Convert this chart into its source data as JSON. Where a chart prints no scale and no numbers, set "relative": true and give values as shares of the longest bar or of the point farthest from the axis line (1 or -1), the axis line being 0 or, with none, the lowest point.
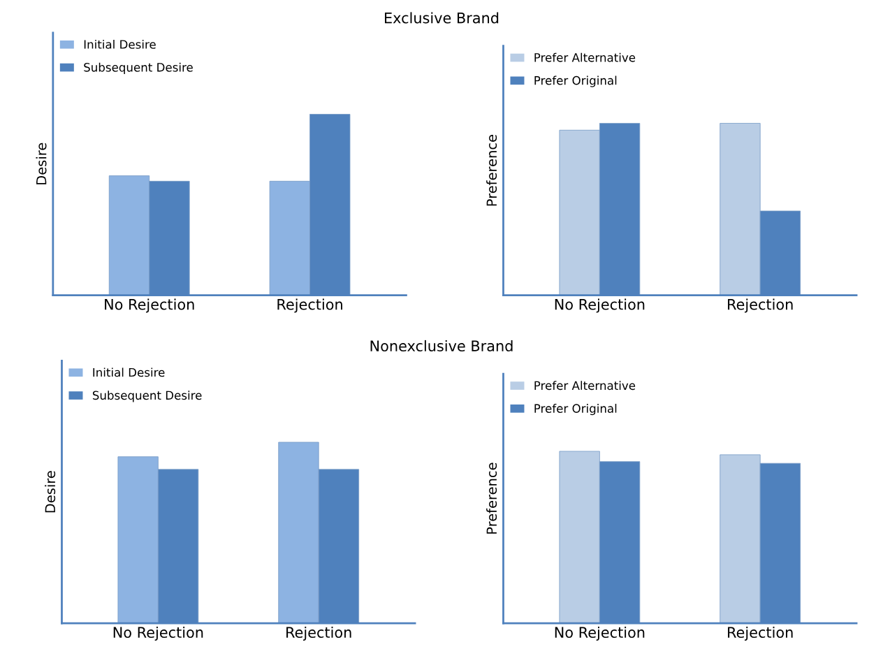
{
  "chart_data": [
    {
      "type": "bar",
      "title": "Exclusive Brand",
      "ylabel": "Desire",
      "relative": true,
      "legend": "top left",
      "grid": false,
      "categories": [
        "No Rejection",
        "Rejection"
      ],
      "series": [
        {
          "name": "Initial Desire",
          "color": "#8db3e2",
          "values": [
            0.66,
            0.63
          ]
        },
        {
          "name": "Subsequent Desire",
          "color": "#4f81bd",
          "values": [
            0.63,
            1
          ]
        }
      ]
    },
    {
      "type": "bar",
      "ylabel": "Preference",
      "relative": true,
      "legend": "top left",
      "grid": false,
      "categories": [
        "No Rejection",
        "Rejection"
      ],
      "series": [
        {
          "name": "Prefer Alternative",
          "color": "#b9cde5",
          "values": [
            0.96,
            1
          ]
        },
        {
          "name": "Prefer Original",
          "color": "#4f81bd",
          "values": [
            1,
            0.49
          ]
        }
      ]
    },
    {
      "type": "bar",
      "title": "Nonexclusive Brand",
      "ylabel": "Desire",
      "relative": true,
      "legend": "top left",
      "grid": false,
      "categories": [
        "No Rejection",
        "Rejection"
      ],
      "series": [
        {
          "name": "Initial Desire",
          "color": "#8db3e2",
          "values": [
            0.92,
            1
          ]
        },
        {
          "name": "Subsequent Desire",
          "color": "#4f81bd",
          "values": [
            0.85,
            0.85
          ]
        }
      ]
    },
    {
      "type": "bar",
      "ylabel": "Preference",
      "relative": true,
      "legend": "top left",
      "grid": false,
      "categories": [
        "No Rejection",
        "Rejection"
      ],
      "series": [
        {
          "name": "Prefer Alternative",
          "color": "#b9cde5",
          "values": [
            1,
            0.98
          ]
        },
        {
          "name": "Prefer Original",
          "color": "#4f81bd",
          "values": [
            0.94,
            0.93
          ]
        }
      ]
    }
  ]
}
